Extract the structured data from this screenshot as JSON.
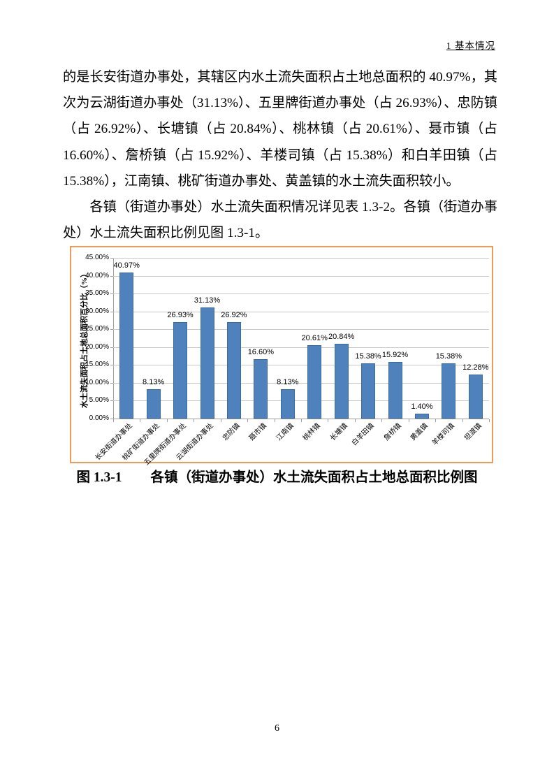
{
  "page": {
    "header": "1  基本情况",
    "page_number": "6"
  },
  "paragraphs": [
    "的是长安街道办事处，其辖区内水土流失面积占土地总面积的 40.97%，其次为云湖街道办事处（31.13%）、五里牌街道办事处（占 26.93%）、忠防镇（占 26.92%）、长塘镇（占 20.84%）、桃林镇（占 20.61%）、聂市镇（占 16.60%）、詹桥镇（占 15.92%）、羊楼司镇（占 15.38%）和白羊田镇（占 15.38%），江南镇、桃矿街道办事处、黄盖镇的水土流失面积较小。",
    "各镇（街道办事处）水土流失面积情况详见表 1.3-2。各镇（街道办事处）水土流失面积比例见图 1.3-1。"
  ],
  "figure_caption": {
    "label": "图 1.3-1",
    "title": "各镇（街道办事处）水土流失面积占土地总面积比例图"
  },
  "chart_data": {
    "type": "bar",
    "title": "",
    "xlabel": "",
    "ylabel": "水土流失面积占土地总面积百分比（%）",
    "categories": [
      "长安街道办事处",
      "桃矿街道办事处",
      "五里牌街道办事处",
      "云湖街道办事处",
      "忠防镇",
      "聂市镇",
      "江南镇",
      "桃林镇",
      "长塘镇",
      "白羊田镇",
      "詹桥镇",
      "黄盖镇",
      "羊楼司镇",
      "坦渡镇"
    ],
    "values": [
      40.97,
      8.13,
      26.93,
      31.13,
      26.92,
      16.6,
      8.13,
      20.61,
      20.84,
      15.38,
      15.92,
      1.4,
      15.38,
      12.28
    ],
    "value_labels": [
      "40.97%",
      "8.13%",
      "26.93%",
      "31.13%",
      "26.92%",
      "16.60%",
      "8.13%",
      "20.61%",
      "20.84%",
      "15.38%",
      "15.92%",
      "1.40%",
      "15.38%",
      "12.28%"
    ],
    "ylim": [
      0,
      45
    ],
    "ytick_step": 5,
    "yticks": [
      "0.00%",
      "5.00%",
      "10.00%",
      "15.00%",
      "20.00%",
      "25.00%",
      "30.00%",
      "35.00%",
      "40.00%",
      "45.00%"
    ],
    "grid": true,
    "legend": "none",
    "bar_color": "#4F81BD",
    "bar_border_color": "#3A6B9E",
    "frame_border_color": "#ED9B5B",
    "gridline_color": "#c9c9c9"
  }
}
